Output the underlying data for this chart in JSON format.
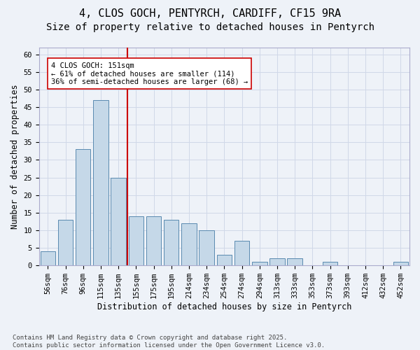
{
  "title_line1": "4, CLOS GOCH, PENTYRCH, CARDIFF, CF15 9RA",
  "title_line2": "Size of property relative to detached houses in Pentyrch",
  "xlabel": "Distribution of detached houses by size in Pentyrch",
  "ylabel": "Number of detached properties",
  "categories": [
    "56sqm",
    "76sqm",
    "96sqm",
    "115sqm",
    "135sqm",
    "155sqm",
    "175sqm",
    "195sqm",
    "214sqm",
    "234sqm",
    "254sqm",
    "274sqm",
    "294sqm",
    "313sqm",
    "333sqm",
    "353sqm",
    "373sqm",
    "393sqm",
    "412sqm",
    "432sqm",
    "452sqm"
  ],
  "values": [
    4,
    13,
    33,
    47,
    25,
    14,
    14,
    13,
    12,
    10,
    3,
    7,
    1,
    2,
    2,
    0,
    1,
    0,
    0,
    0,
    1
  ],
  "bar_color": "#c5d8e8",
  "bar_edge_color": "#5a8ab0",
  "grid_color": "#d0d8e8",
  "background_color": "#eef2f8",
  "vline_pos": 4.5,
  "vline_color": "#cc0000",
  "annotation_text": "4 CLOS GOCH: 151sqm\n← 61% of detached houses are smaller (114)\n36% of semi-detached houses are larger (68) →",
  "annotation_box_edgecolor": "#cc0000",
  "ylim_max": 62,
  "yticks": [
    0,
    5,
    10,
    15,
    20,
    25,
    30,
    35,
    40,
    45,
    50,
    55,
    60
  ],
  "footnote": "Contains HM Land Registry data © Crown copyright and database right 2025.\nContains public sector information licensed under the Open Government Licence v3.0.",
  "title_fontsize": 11,
  "subtitle_fontsize": 10,
  "axis_label_fontsize": 8.5,
  "tick_fontsize": 7.5,
  "annotation_fontsize": 7.5,
  "footnote_fontsize": 6.5
}
